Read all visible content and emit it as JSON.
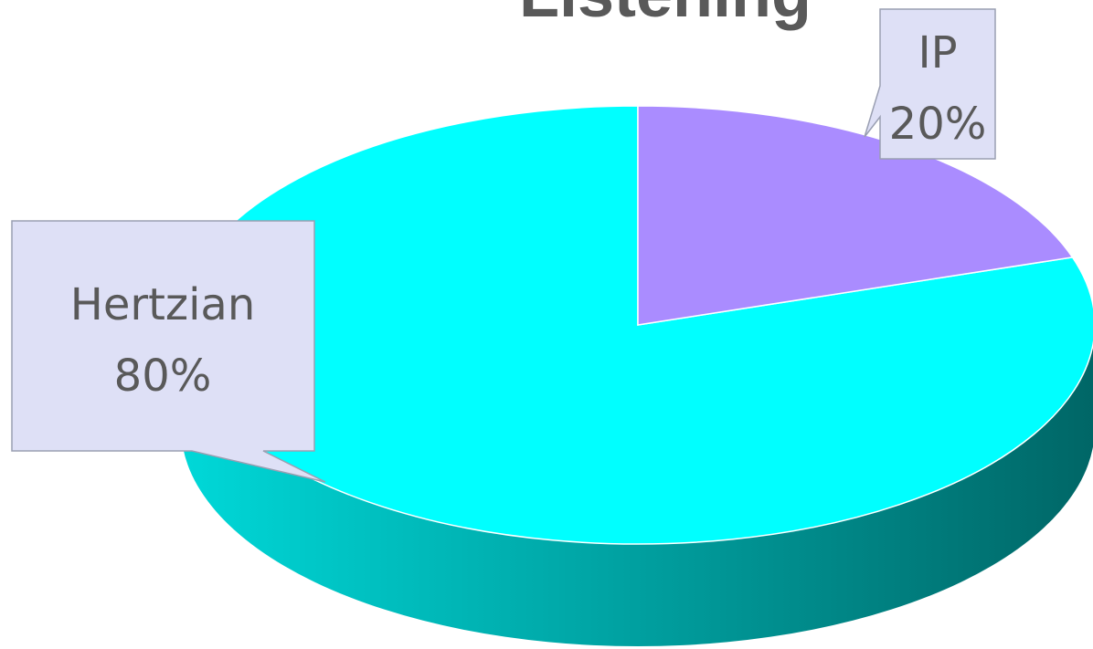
{
  "chart_data": {
    "type": "pie",
    "title": "Listening",
    "categories": [
      "Hertzian",
      "IP"
    ],
    "values": [
      80,
      20
    ],
    "data_labels": [
      "80%",
      "20%"
    ],
    "colors": {
      "Hertzian": "#00FFFF",
      "IP": "#AA8CFF",
      "hertzian_side_light": "#00D8D8",
      "hertzian_side_dark": "#006666",
      "label_box_fill": "#DEE0F6",
      "label_box_border": "#9A9FB2",
      "label_text": "#595959",
      "title_text": "#595959"
    },
    "style": "3d-perspective",
    "legend": "none"
  }
}
